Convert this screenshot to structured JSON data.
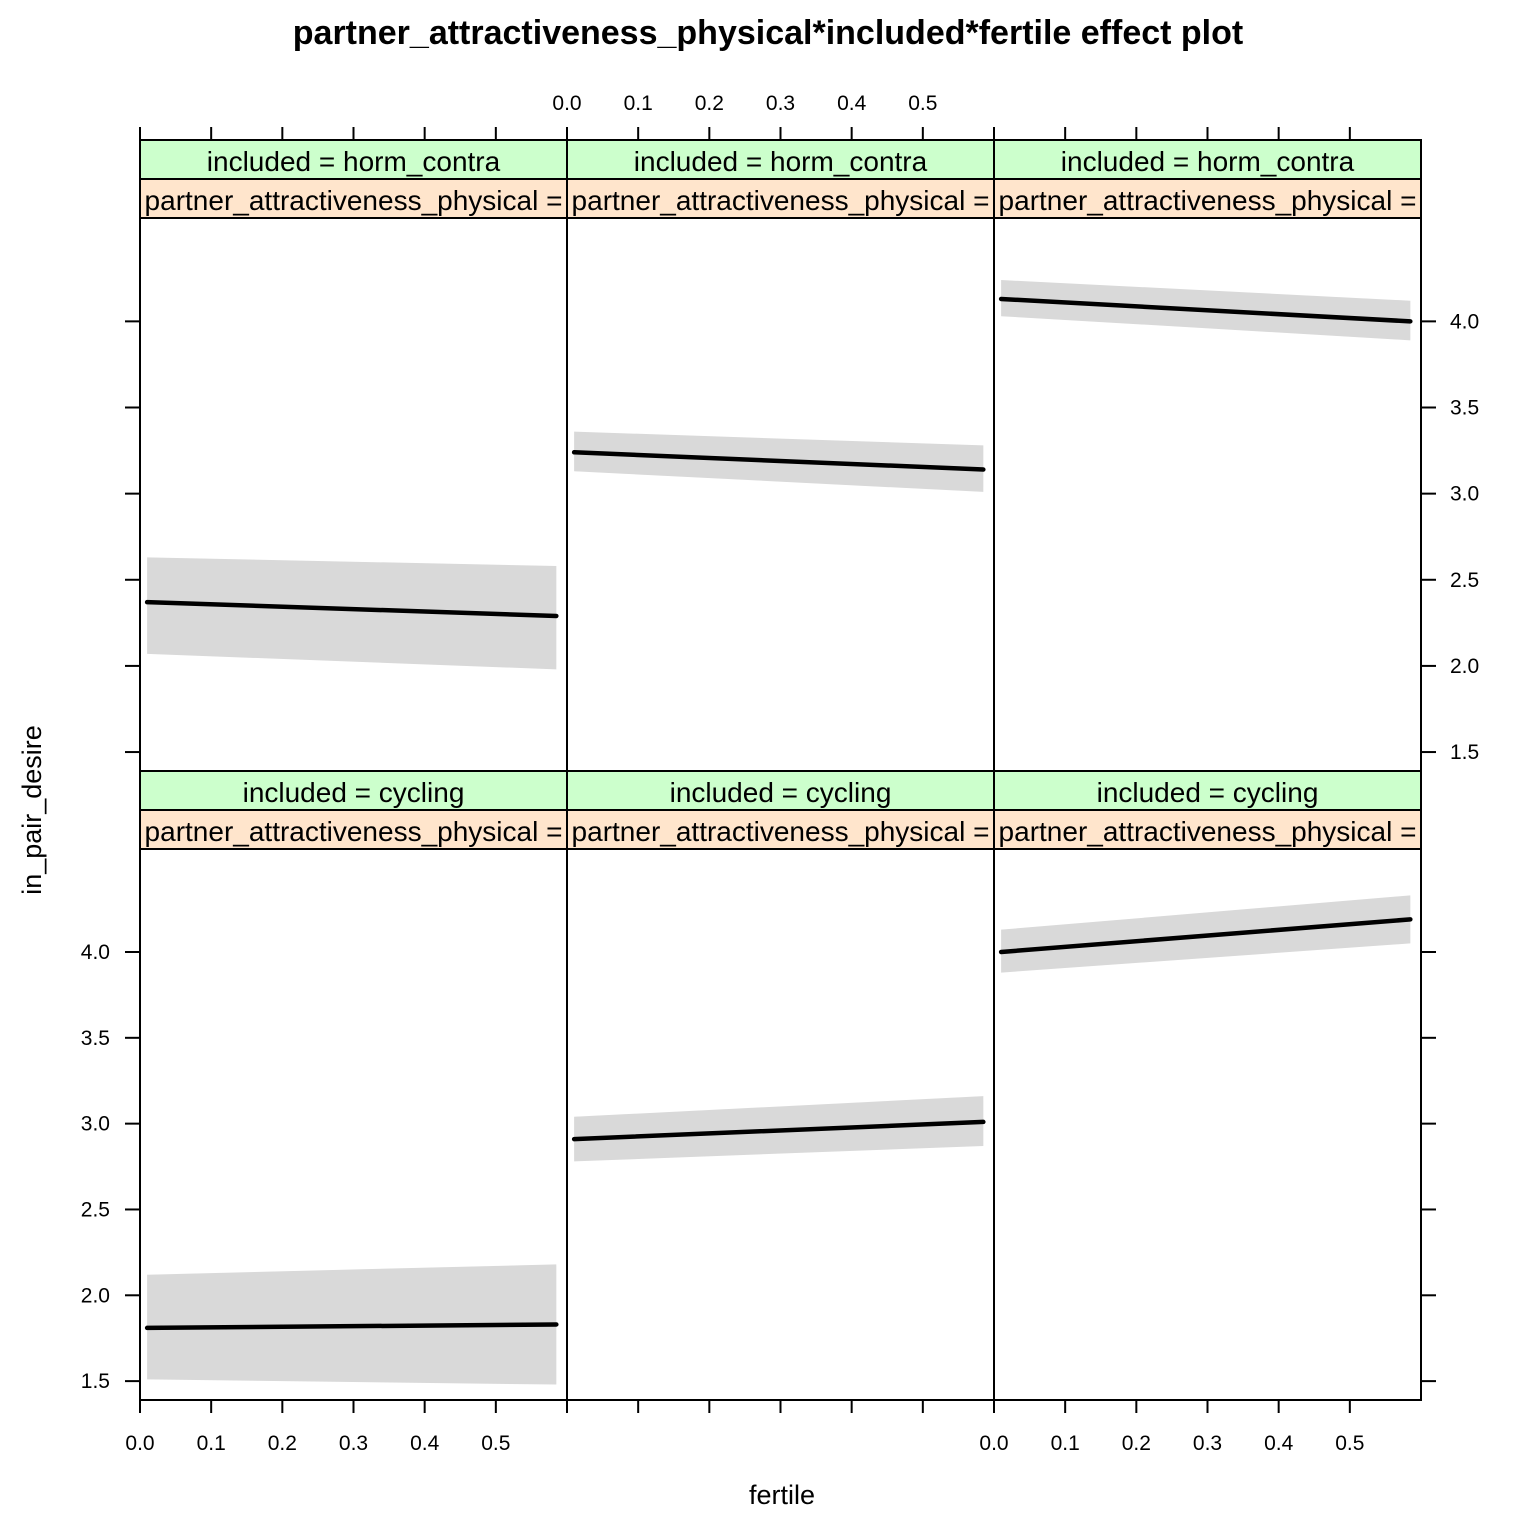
{
  "chart_data": {
    "type": "line",
    "title": "partner_attractiveness_physical*included*fertile effect plot",
    "xlabel": "fertile",
    "ylabel": "in_pair_desire",
    "xlim": [
      0.0,
      0.6
    ],
    "ylim": [
      1.39,
      4.6
    ],
    "x_ticks": [
      "0.0",
      "0.1",
      "0.2",
      "0.3",
      "0.4",
      "0.5"
    ],
    "y_ticks": [
      "1.5",
      "2.0",
      "2.5",
      "3.0",
      "3.5",
      "4.0"
    ],
    "panels": [
      {
        "row": "top",
        "col": 0,
        "strip_included": "included = horm_contra",
        "strip_partner": "partner_attractiveness_physical =",
        "x": [
          0.01,
          0.585
        ],
        "fit": [
          2.37,
          2.29
        ],
        "lower": [
          2.07,
          1.98
        ],
        "upper": [
          2.63,
          2.58
        ]
      },
      {
        "row": "top",
        "col": 1,
        "strip_included": "included = horm_contra",
        "strip_partner": "partner_attractiveness_physical =",
        "x": [
          0.01,
          0.585
        ],
        "fit": [
          3.24,
          3.14
        ],
        "lower": [
          3.13,
          3.01
        ],
        "upper": [
          3.36,
          3.28
        ]
      },
      {
        "row": "top",
        "col": 2,
        "strip_included": "included = horm_contra",
        "strip_partner": "partner_attractiveness_physical =",
        "x": [
          0.01,
          0.585
        ],
        "fit": [
          4.13,
          4.0
        ],
        "lower": [
          4.03,
          3.89
        ],
        "upper": [
          4.24,
          4.12
        ]
      },
      {
        "row": "bottom",
        "col": 0,
        "strip_included": "included = cycling",
        "strip_partner": "partner_attractiveness_physical =",
        "x": [
          0.01,
          0.585
        ],
        "fit": [
          1.81,
          1.83
        ],
        "lower": [
          1.51,
          1.48
        ],
        "upper": [
          2.12,
          2.18
        ]
      },
      {
        "row": "bottom",
        "col": 1,
        "strip_included": "included = cycling",
        "strip_partner": "partner_attractiveness_physical =",
        "x": [
          0.01,
          0.585
        ],
        "fit": [
          2.91,
          3.01
        ],
        "lower": [
          2.78,
          2.87
        ],
        "upper": [
          3.04,
          3.16
        ]
      },
      {
        "row": "bottom",
        "col": 2,
        "strip_included": "included = cycling",
        "strip_partner": "partner_attractiveness_physical =",
        "x": [
          0.01,
          0.585
        ],
        "fit": [
          4.0,
          4.19
        ],
        "lower": [
          3.88,
          4.05
        ],
        "upper": [
          4.13,
          4.33
        ]
      }
    ],
    "colors": {
      "strip_included": "#ccffcc",
      "strip_partner": "#ffe5cc",
      "band": "#d9d9d9",
      "line": "#000000",
      "border": "#000000"
    }
  }
}
